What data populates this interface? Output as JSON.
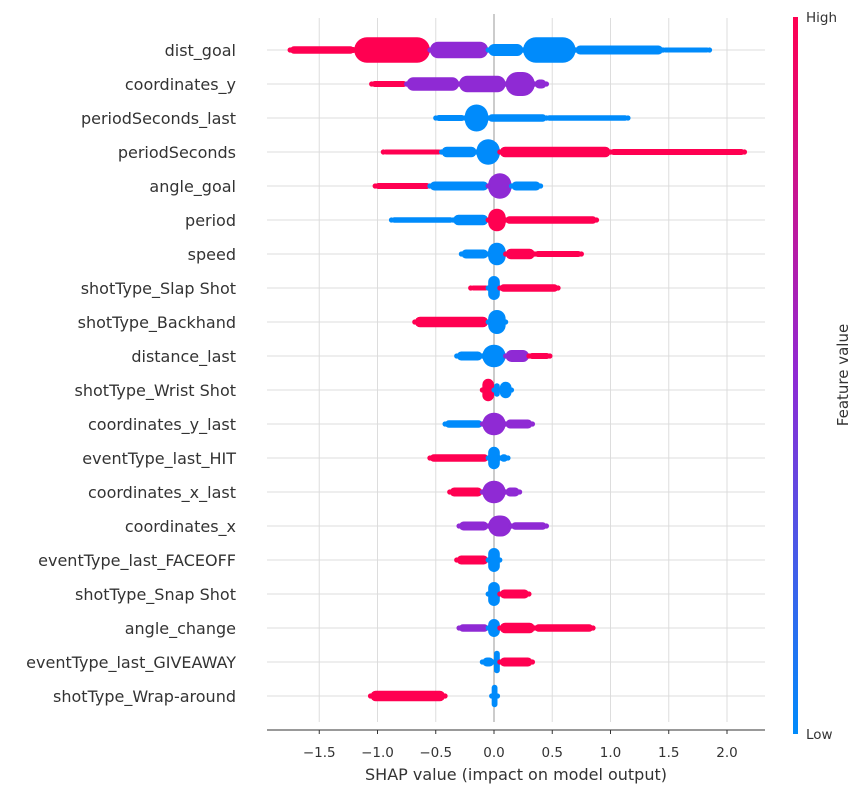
{
  "chart_data": {
    "type": "scatter",
    "subtype": "shap-beeswarm",
    "xlabel": "SHAP value (impact on model output)",
    "x_ticks": [
      "−1.5",
      "−1.0",
      "−0.5",
      "0.0",
      "0.5",
      "1.0",
      "1.5",
      "2.0"
    ],
    "x_tick_values": [
      -1.5,
      -1.0,
      -0.5,
      0.0,
      0.5,
      1.0,
      1.5,
      2.0
    ],
    "xlim": [
      -1.95,
      2.35
    ],
    "colorbar": {
      "title": "Feature value",
      "high_label": "High",
      "low_label": "Low",
      "high_color": "#ff0051",
      "low_color": "#008bfb",
      "mid_color": "#8f2ad4"
    },
    "features": [
      {
        "name": "dist_goal",
        "segments": [
          [
            -1.75,
            -1.2,
            "high",
            0.25
          ],
          [
            -1.2,
            -0.55,
            "high",
            0.85
          ],
          [
            -0.55,
            -0.05,
            "mid",
            0.55
          ],
          [
            -0.05,
            0.25,
            "low",
            0.4
          ],
          [
            0.25,
            0.7,
            "low",
            0.85
          ],
          [
            0.7,
            1.45,
            "low",
            0.3
          ],
          [
            1.45,
            1.85,
            "low",
            0.15
          ]
        ],
        "gaps": [
          [
            -1.45,
            -1.2,
            "high"
          ],
          [
            -0.35,
            -0.2,
            "mid"
          ]
        ]
      },
      {
        "name": "coordinates_y",
        "segments": [
          [
            -1.05,
            -0.75,
            "high",
            0.2
          ],
          [
            -0.75,
            -0.3,
            "mid",
            0.45
          ],
          [
            -0.3,
            0.1,
            "mid",
            0.55
          ],
          [
            0.1,
            0.35,
            "mid",
            0.8
          ],
          [
            0.35,
            0.45,
            "mid",
            0.3
          ]
        ],
        "gaps": []
      },
      {
        "name": "periodSeconds_last",
        "segments": [
          [
            -0.5,
            -0.25,
            "low",
            0.2
          ],
          [
            -0.25,
            -0.05,
            "low",
            0.9
          ],
          [
            -0.05,
            0.45,
            "low",
            0.25
          ],
          [
            0.45,
            1.15,
            "low",
            0.18
          ]
        ],
        "gaps": []
      },
      {
        "name": "periodSeconds",
        "segments": [
          [
            -0.95,
            -0.45,
            "high",
            0.15
          ],
          [
            -0.45,
            -0.15,
            "low",
            0.35
          ],
          [
            -0.15,
            0.05,
            "low",
            0.85
          ],
          [
            0.05,
            1.0,
            "high",
            0.35
          ],
          [
            1.0,
            2.15,
            "high",
            0.2
          ]
        ],
        "gaps": []
      },
      {
        "name": "angle_goal",
        "segments": [
          [
            -1.02,
            -0.55,
            "high",
            0.2
          ],
          [
            -0.55,
            -0.05,
            "low",
            0.3
          ],
          [
            -0.05,
            0.15,
            "mid",
            0.85
          ],
          [
            0.15,
            0.4,
            "low",
            0.3
          ]
        ],
        "gaps": []
      },
      {
        "name": "period",
        "segments": [
          [
            -0.88,
            -0.35,
            "low",
            0.18
          ],
          [
            -0.35,
            -0.05,
            "low",
            0.35
          ],
          [
            -0.05,
            0.1,
            "high",
            0.75
          ],
          [
            0.1,
            0.88,
            "high",
            0.25
          ]
        ],
        "gaps": []
      },
      {
        "name": "speed",
        "segments": [
          [
            -0.28,
            -0.05,
            "low",
            0.3
          ],
          [
            -0.05,
            0.1,
            "low",
            0.75
          ],
          [
            0.1,
            0.35,
            "high",
            0.35
          ],
          [
            0.35,
            0.75,
            "high",
            0.2
          ]
        ],
        "gaps": []
      },
      {
        "name": "shotType_Slap Shot",
        "segments": [
          [
            -0.2,
            -0.05,
            "high",
            0.15
          ],
          [
            -0.05,
            0.05,
            "low",
            0.8
          ],
          [
            0.05,
            0.55,
            "high",
            0.25
          ]
        ],
        "gaps": []
      },
      {
        "name": "shotType_Backhand",
        "segments": [
          [
            -0.68,
            -0.05,
            "high",
            0.35
          ],
          [
            -0.05,
            0.1,
            "low",
            0.8
          ]
        ],
        "gaps": []
      },
      {
        "name": "distance_last",
        "segments": [
          [
            -0.32,
            -0.1,
            "low",
            0.3
          ],
          [
            -0.1,
            0.1,
            "low",
            0.75
          ],
          [
            0.1,
            0.3,
            "mid",
            0.4
          ],
          [
            0.3,
            0.48,
            "high",
            0.2
          ]
        ],
        "gaps": []
      },
      {
        "name": "shotType_Wrist Shot",
        "segments": [
          [
            -0.1,
            0.0,
            "high",
            0.75
          ],
          [
            0.0,
            0.05,
            "low",
            0.45
          ],
          [
            0.05,
            0.15,
            "low",
            0.55
          ]
        ],
        "gaps": []
      },
      {
        "name": "coordinates_y_last",
        "segments": [
          [
            -0.42,
            -0.1,
            "low",
            0.25
          ],
          [
            -0.1,
            0.1,
            "mid",
            0.75
          ],
          [
            0.1,
            0.33,
            "mid",
            0.3
          ]
        ],
        "gaps": []
      },
      {
        "name": "eventType_last_HIT",
        "segments": [
          [
            -0.55,
            -0.05,
            "high",
            0.25
          ],
          [
            -0.05,
            0.05,
            "low",
            0.75
          ],
          [
            0.05,
            0.12,
            "low",
            0.25
          ]
        ],
        "gaps": []
      },
      {
        "name": "coordinates_x_last",
        "segments": [
          [
            -0.38,
            -0.1,
            "high",
            0.3
          ],
          [
            -0.1,
            0.1,
            "mid",
            0.75
          ],
          [
            0.1,
            0.22,
            "mid",
            0.3
          ]
        ],
        "gaps": []
      },
      {
        "name": "coordinates_x",
        "segments": [
          [
            -0.3,
            -0.05,
            "mid",
            0.3
          ],
          [
            -0.05,
            0.15,
            "mid",
            0.7
          ],
          [
            0.15,
            0.45,
            "mid",
            0.25
          ]
        ],
        "gaps": []
      },
      {
        "name": "eventType_last_FACEOFF",
        "segments": [
          [
            -0.32,
            -0.05,
            "high",
            0.3
          ],
          [
            -0.05,
            0.05,
            "low",
            0.8
          ]
        ],
        "gaps": []
      },
      {
        "name": "shotType_Snap Shot",
        "segments": [
          [
            -0.05,
            0.05,
            "low",
            0.8
          ],
          [
            0.05,
            0.3,
            "high",
            0.3
          ]
        ],
        "gaps": []
      },
      {
        "name": "angle_change",
        "segments": [
          [
            -0.3,
            -0.05,
            "mid",
            0.25
          ],
          [
            -0.05,
            0.05,
            "low",
            0.6
          ],
          [
            0.05,
            0.35,
            "high",
            0.35
          ],
          [
            0.35,
            0.85,
            "high",
            0.25
          ]
        ],
        "gaps": []
      },
      {
        "name": "eventType_last_GIVEAWAY",
        "segments": [
          [
            -0.1,
            0.0,
            "low",
            0.3
          ],
          [
            0.0,
            0.05,
            "low",
            0.75
          ],
          [
            0.05,
            0.33,
            "high",
            0.3
          ]
        ],
        "gaps": []
      },
      {
        "name": "shotType_Wrap-around",
        "segments": [
          [
            -1.06,
            -0.42,
            "high",
            0.35
          ],
          [
            -0.02,
            0.03,
            "low",
            0.75
          ]
        ],
        "gaps": []
      }
    ]
  }
}
